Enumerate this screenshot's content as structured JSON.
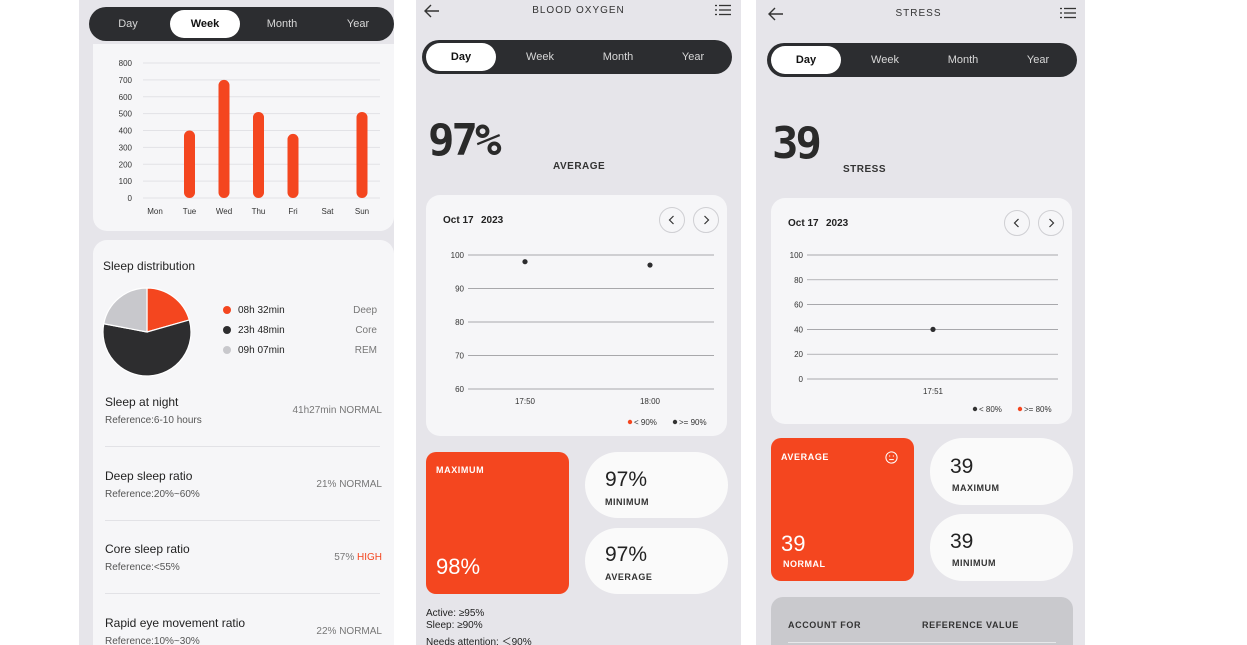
{
  "sleep_panel": {
    "tabs": [
      "Day",
      "Week",
      "Month",
      "Year"
    ],
    "active_tab": "Week",
    "chart_data": {
      "type": "bar",
      "categories": [
        "Mon",
        "Tue",
        "Wed",
        "Thu",
        "Fri",
        "Sat",
        "Sun"
      ],
      "values": [
        0,
        400,
        700,
        510,
        380,
        0,
        510
      ],
      "ylim": [
        0,
        800
      ],
      "yticks": [
        "800",
        "700",
        "600",
        "500",
        "400",
        "300",
        "200",
        "100",
        "0"
      ],
      "color": "#f4461f"
    },
    "distribution": {
      "title": "Sleep distribution",
      "items": [
        {
          "value": "08h 32min",
          "label": "Deep",
          "color": "#f4461f"
        },
        {
          "value": "23h 48min",
          "label": "Core",
          "color": "#2d2d2f"
        },
        {
          "value": "09h 07min",
          "label": "REM",
          "color": "#c8c8cc"
        }
      ]
    },
    "metrics": [
      {
        "title": "Sleep at night",
        "ref": "Reference:6-10 hours",
        "value": "41h27min",
        "status": "NORMAL",
        "status_color": "#777777"
      },
      {
        "title": "Deep sleep ratio",
        "ref": "Reference:20%~60%",
        "value": "21%",
        "status": "NORMAL",
        "status_color": "#777777"
      },
      {
        "title": "Core sleep ratio",
        "ref": "Reference:<55%",
        "value": "57%",
        "status": "HIGH",
        "status_color": "#f4461f"
      },
      {
        "title": "Rapid eye movement ratio",
        "ref": "Reference:10%~30%",
        "value": "22%",
        "status": "NORMAL",
        "status_color": "#777777"
      }
    ]
  },
  "oxygen_panel": {
    "title": "BLOOD OXYGEN",
    "tabs": [
      "Day",
      "Week",
      "Month",
      "Year"
    ],
    "active_tab": "Day",
    "big_value": "97%",
    "big_label": "AVERAGE",
    "date": "Oct 17",
    "year": "2023",
    "chart_data": {
      "type": "scatter",
      "ylim": [
        60,
        100
      ],
      "yticks": [
        "100",
        "90",
        "80",
        "70",
        "60"
      ],
      "xticks": [
        "17:50",
        "18:00"
      ],
      "points": [
        {
          "x": "17:50",
          "y": 98
        },
        {
          "x": "18:00",
          "y": 97
        }
      ],
      "legend": [
        "< 90%",
        ">= 90%"
      ],
      "legend_colors": [
        "#f4461f",
        "#333333"
      ]
    },
    "maximum_label": "MAXIMUM",
    "maximum_value": "98%",
    "minimum_value": "97%",
    "minimum_label": "MINIMUM",
    "average_value": "97%",
    "average_label": "AVERAGE",
    "notes": [
      "Active: ≥95%",
      "Sleep: ≥90%",
      "Needs attention: ＜90%"
    ]
  },
  "stress_panel": {
    "title": "STRESS",
    "tabs": [
      "Day",
      "Week",
      "Month",
      "Year"
    ],
    "active_tab": "Day",
    "big_value": "39",
    "big_label": "STRESS",
    "date": "Oct 17",
    "year": "2023",
    "chart_data": {
      "type": "scatter",
      "ylim": [
        0,
        100
      ],
      "yticks": [
        "100",
        "80",
        "60",
        "40",
        "20",
        "0"
      ],
      "xticks": [
        "17:51"
      ],
      "points": [
        {
          "x": "17:51",
          "y": 40
        }
      ],
      "legend": [
        "< 80%",
        ">= 80%"
      ],
      "legend_colors": [
        "#333333",
        "#f4461f"
      ]
    },
    "average_label": "AVERAGE",
    "average_value": "39",
    "average_status": "NORMAL",
    "maximum_value": "39",
    "maximum_label": "MAXIMUM",
    "minimum_value": "39",
    "minimum_label": "MINIMUM",
    "table_headers": [
      "ACCOUNT FOR",
      "REFERENCE VALUE"
    ]
  },
  "icons": {
    "back": "back-arrow-icon",
    "menu": "menu-list-icon",
    "prev": "chevron-left-icon",
    "next": "chevron-right-icon",
    "face": "face-icon"
  }
}
